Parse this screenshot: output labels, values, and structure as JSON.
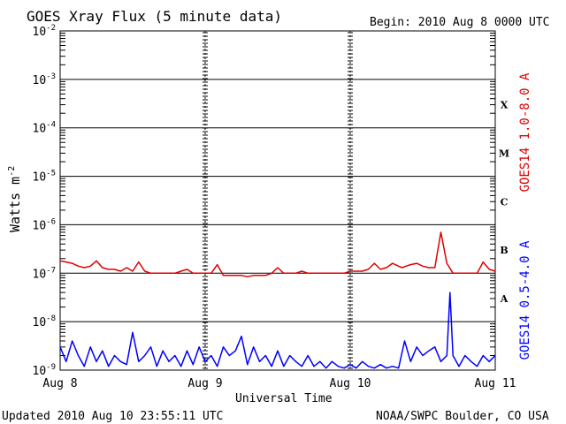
{
  "header": {
    "title": "GOES Xray Flux (5 minute data)",
    "begin": "Begin:  2010 Aug 8 0000 UTC"
  },
  "footer": {
    "updated": "Updated 2010 Aug 10 23:55:11 UTC",
    "credit": "NOAA/SWPC Boulder, CO USA"
  },
  "chart_data": {
    "type": "line",
    "title": "GOES Xray Flux (5 minute data)",
    "xlabel": "Universal Time",
    "ylabel": "Watts m",
    "ylabel_sup": "-2",
    "y_scale": "log",
    "ylim": [
      1e-09,
      0.01
    ],
    "xlim": [
      0,
      72
    ],
    "x_unit": "hours since 2010 Aug 8 0000 UTC",
    "x_ticks": [
      {
        "label": "Aug 8",
        "x": 0
      },
      {
        "label": "Aug 9",
        "x": 24
      },
      {
        "label": "Aug 10",
        "x": 48
      },
      {
        "label": "Aug 11",
        "x": 72
      }
    ],
    "y_ticks": [
      {
        "base": "10",
        "exp": "-2"
      },
      {
        "base": "10",
        "exp": "-3"
      },
      {
        "base": "10",
        "exp": "-4"
      },
      {
        "base": "10",
        "exp": "-5"
      },
      {
        "base": "10",
        "exp": "-6"
      },
      {
        "base": "10",
        "exp": "-7"
      },
      {
        "base": "10",
        "exp": "-8"
      },
      {
        "base": "10",
        "exp": "-9"
      }
    ],
    "flare_classes": [
      {
        "label": "X",
        "at": 0.0003
      },
      {
        "label": "M",
        "at": 3e-05
      },
      {
        "label": "C",
        "at": 3e-06
      },
      {
        "label": "B",
        "at": 3e-07
      },
      {
        "label": "A",
        "at": 3e-08
      }
    ],
    "series": [
      {
        "name": "GOES14 1.0-8.0 A",
        "color": "#dd0000",
        "x": [
          0,
          1,
          2,
          3,
          4,
          5,
          6,
          7,
          8,
          9,
          10,
          11,
          12,
          13,
          14,
          15,
          16,
          17,
          18,
          19,
          20,
          21,
          22,
          23,
          24,
          25,
          26,
          27,
          28,
          29,
          30,
          31,
          32,
          33,
          34,
          35,
          36,
          37,
          38,
          39,
          40,
          41,
          42,
          43,
          44,
          45,
          46,
          47,
          48,
          49,
          50,
          51,
          52,
          53,
          54,
          55,
          56,
          56.6,
          57.2,
          58,
          59,
          60,
          61,
          62,
          63,
          64,
          65,
          66,
          67,
          68,
          69,
          70,
          71,
          72
        ],
        "values": [
          1.8e-07,
          1.7e-07,
          1.6e-07,
          1.4e-07,
          1.3e-07,
          1.4e-07,
          1.8e-07,
          1.3e-07,
          1.2e-07,
          1.2e-07,
          1.1e-07,
          1.3e-07,
          1.1e-07,
          1.7e-07,
          1.1e-07,
          1e-07,
          1e-07,
          1e-07,
          1e-07,
          1e-07,
          1.1e-07,
          1.2e-07,
          1e-07,
          1e-07,
          1e-07,
          1e-07,
          1.5e-07,
          9e-08,
          9e-08,
          9e-08,
          9e-08,
          8.5e-08,
          9e-08,
          9e-08,
          9e-08,
          1e-07,
          1.3e-07,
          1e-07,
          1e-07,
          1e-07,
          1.1e-07,
          1e-07,
          1e-07,
          1e-07,
          1e-07,
          1e-07,
          1e-07,
          1e-07,
          1.1e-07,
          1.1e-07,
          1.1e-07,
          1.2e-07,
          1.6e-07,
          1.2e-07,
          1.3e-07,
          1.6e-07,
          1.4e-07,
          1.3e-07,
          1.4e-07,
          1.5e-07,
          1.6e-07,
          1.4e-07,
          1.3e-07,
          1.3e-07,
          7e-07,
          1.6e-07,
          1e-07,
          1e-07,
          1e-07,
          1e-07,
          1e-07,
          1.7e-07,
          1.2e-07,
          1.1e-07
        ]
      },
      {
        "name": "GOES14 0.5-4.0 A",
        "color": "#0000ff",
        "x": [
          0,
          1,
          2,
          3,
          4,
          5,
          6,
          7,
          8,
          9,
          10,
          11,
          12,
          13,
          14,
          15,
          16,
          17,
          18,
          19,
          20,
          21,
          22,
          23,
          24,
          25,
          26,
          27,
          28,
          29,
          30,
          31,
          32,
          33,
          34,
          35,
          36,
          37,
          38,
          39,
          40,
          41,
          42,
          43,
          44,
          45,
          46,
          47,
          48,
          49,
          50,
          51,
          52,
          53,
          54,
          55,
          56,
          57,
          58,
          59,
          60,
          61,
          62,
          63,
          64,
          64.5,
          65,
          66,
          67,
          68,
          69,
          70,
          71,
          72
        ],
        "values": [
          3e-09,
          1.5e-09,
          4e-09,
          2e-09,
          1.2e-09,
          3e-09,
          1.5e-09,
          2.5e-09,
          1.2e-09,
          2e-09,
          1.5e-09,
          1.3e-09,
          6e-09,
          1.5e-09,
          2e-09,
          3e-09,
          1.2e-09,
          2.5e-09,
          1.5e-09,
          2e-09,
          1.2e-09,
          2.5e-09,
          1.3e-09,
          3e-09,
          1.5e-09,
          2e-09,
          1.2e-09,
          3e-09,
          2e-09,
          2.5e-09,
          5e-09,
          1.3e-09,
          3e-09,
          1.5e-09,
          2e-09,
          1.2e-09,
          2.5e-09,
          1.2e-09,
          2e-09,
          1.5e-09,
          1.2e-09,
          2e-09,
          1.2e-09,
          1.5e-09,
          1.1e-09,
          1.5e-09,
          1.2e-09,
          1.1e-09,
          1.3e-09,
          1.1e-09,
          1.5e-09,
          1.2e-09,
          1.1e-09,
          1.3e-09,
          1.1e-09,
          1.2e-09,
          1.1e-09,
          4e-09,
          1.5e-09,
          3e-09,
          2e-09,
          2.5e-09,
          3e-09,
          1.5e-09,
          2e-09,
          4e-08,
          2e-09,
          1.2e-09,
          2e-09,
          1.5e-09,
          1.2e-09,
          2e-09,
          1.5e-09,
          2e-09
        ]
      }
    ]
  }
}
